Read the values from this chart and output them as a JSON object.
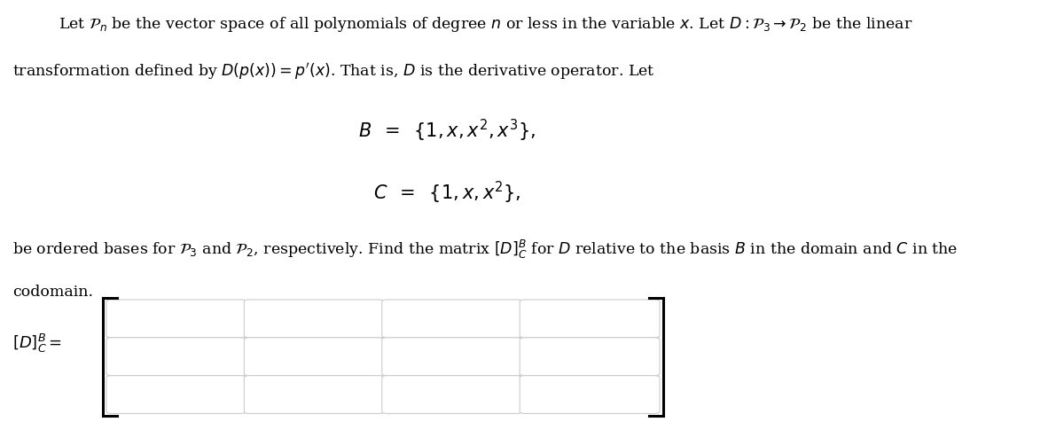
{
  "background_color": "#ffffff",
  "text_color": "#000000",
  "fig_width": 12.0,
  "fig_height": 4.76,
  "line1": "Let $\\mathcal{P}_n$ be the vector space of all polynomials of degree $n$ or less in the variable $x$. Let $D : \\mathcal{P}_3 \\rightarrow \\mathcal{P}_2$ be the linear",
  "line2": "transformation defined by $D(p(x)) = p^{\\prime}(x)$. That is, $D$ is the derivative operator. Let",
  "line_B": "$\\mathit{B}  \\;\\; = \\;\\;  \\{1, x, x^2, x^3\\},$",
  "line_C": "$\\mathit{C}  \\;\\; = \\;\\;  \\{1, x, x^2\\},$",
  "para2_line1": "be ordered bases for $\\mathcal{P}_3$ and $\\mathcal{P}_2$, respectively. Find the matrix $[D]_{\\mathit{C}}^{\\mathit{B}}$ for $D$ relative to the basis $\\mathit{B}$ in the domain and $\\mathit{C}$ in the",
  "para2_line2": "codomain.",
  "label_matrix": "$[D]_{\\mathit{C}}^{\\mathit{B}} =$",
  "n_rows": 3,
  "n_cols": 4,
  "cell_fill": "#ffffff",
  "cell_edge": "#cccccc",
  "matrix_bg": "#e8e8e8",
  "bracket_color": "#000000",
  "text_fontsize": 12.5,
  "bc_fontsize": 15,
  "label_fontsize": 13
}
